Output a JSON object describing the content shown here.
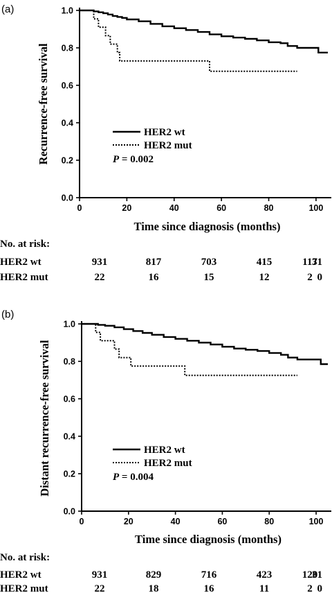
{
  "chart_data": [
    {
      "type": "line",
      "panel_label": "(a)",
      "ylabel": "Recurrence-free survival",
      "xlabel": "Time since diagnosis (months)",
      "xlim": [
        0,
        105
      ],
      "ylim": [
        0.0,
        1.0
      ],
      "x_ticks": [
        "0",
        "20",
        "40",
        "60",
        "80",
        "100"
      ],
      "y_ticks": [
        "0.0",
        "0.2",
        "0.4",
        "0.6",
        "0.8",
        "1.0"
      ],
      "legend": {
        "placement": "center-left",
        "p_label": "P",
        "p_value": "= 0.002"
      },
      "series": [
        {
          "name": "HER2 wt",
          "style": "solid",
          "points": [
            [
              0,
              1.0
            ],
            [
              4,
              1.0
            ],
            [
              6,
              0.995
            ],
            [
              8,
              0.99
            ],
            [
              10,
              0.985
            ],
            [
              12,
              0.978
            ],
            [
              14,
              0.97
            ],
            [
              16,
              0.965
            ],
            [
              18,
              0.96
            ],
            [
              20,
              0.952
            ],
            [
              25,
              0.942
            ],
            [
              30,
              0.928
            ],
            [
              35,
              0.915
            ],
            [
              40,
              0.905
            ],
            [
              45,
              0.895
            ],
            [
              50,
              0.885
            ],
            [
              55,
              0.872
            ],
            [
              60,
              0.862
            ],
            [
              65,
              0.855
            ],
            [
              70,
              0.848
            ],
            [
              75,
              0.84
            ],
            [
              80,
              0.83
            ],
            [
              85,
              0.825
            ],
            [
              88,
              0.81
            ],
            [
              92,
              0.8
            ],
            [
              96,
              0.8
            ],
            [
              100,
              0.8
            ],
            [
              101,
              0.775
            ],
            [
              105,
              0.775
            ]
          ]
        },
        {
          "name": "HER2 mut",
          "style": "dotted",
          "points": [
            [
              5,
              1.0
            ],
            [
              6,
              0.955
            ],
            [
              8,
              0.91
            ],
            [
              11,
              0.865
            ],
            [
              13,
              0.82
            ],
            [
              16,
              0.775
            ],
            [
              17,
              0.73
            ],
            [
              54,
              0.73
            ],
            [
              55,
              0.675
            ],
            [
              92,
              0.675
            ]
          ]
        }
      ],
      "risk_table": {
        "title": "No. at risk:",
        "rows": [
          {
            "label": "HER2 wt",
            "values": [
              "931",
              "817",
              "703",
              "415",
              "117",
              "31"
            ]
          },
          {
            "label": "HER2 mut",
            "values": [
              "22",
              "16",
              "15",
              "12",
              "2",
              "0"
            ]
          }
        ]
      }
    },
    {
      "type": "line",
      "panel_label": "(b)",
      "ylabel": "Distant recurrence-free survival",
      "xlabel": "Time since diagnosis (months)",
      "xlim": [
        0,
        105
      ],
      "ylim": [
        0.0,
        1.0
      ],
      "x_ticks": [
        "0",
        "20",
        "40",
        "60",
        "80",
        "100"
      ],
      "y_ticks": [
        "0.0",
        "0.2",
        "0.4",
        "0.6",
        "0.8",
        "1.0"
      ],
      "legend": {
        "placement": "center-left",
        "p_label": "P",
        "p_value": "= 0.004"
      },
      "series": [
        {
          "name": "HER2 wt",
          "style": "solid",
          "points": [
            [
              0,
              1.0
            ],
            [
              5,
              1.0
            ],
            [
              7,
              0.995
            ],
            [
              10,
              0.99
            ],
            [
              14,
              0.982
            ],
            [
              18,
              0.972
            ],
            [
              22,
              0.962
            ],
            [
              26,
              0.952
            ],
            [
              30,
              0.942
            ],
            [
              35,
              0.93
            ],
            [
              40,
              0.92
            ],
            [
              45,
              0.91
            ],
            [
              50,
              0.9
            ],
            [
              55,
              0.89
            ],
            [
              60,
              0.878
            ],
            [
              65,
              0.868
            ],
            [
              70,
              0.862
            ],
            [
              75,
              0.855
            ],
            [
              80,
              0.845
            ],
            [
              85,
              0.835
            ],
            [
              88,
              0.82
            ],
            [
              92,
              0.81
            ],
            [
              96,
              0.81
            ],
            [
              100,
              0.81
            ],
            [
              102,
              0.785
            ],
            [
              105,
              0.785
            ]
          ]
        },
        {
          "name": "HER2 mut",
          "style": "dotted",
          "points": [
            [
              5,
              1.0
            ],
            [
              6,
              0.955
            ],
            [
              8,
              0.91
            ],
            [
              14,
              0.865
            ],
            [
              16,
              0.82
            ],
            [
              21,
              0.775
            ],
            [
              22,
              0.775
            ],
            [
              43,
              0.775
            ],
            [
              44,
              0.725
            ],
            [
              92,
              0.725
            ]
          ]
        }
      ],
      "risk_table": {
        "title": "No. at risk:",
        "rows": [
          {
            "label": "HER2 wt",
            "values": [
              "931",
              "829",
              "716",
              "423",
              "120",
              "31"
            ]
          },
          {
            "label": "HER2 mut",
            "values": [
              "22",
              "18",
              "16",
              "11",
              "2",
              "0"
            ]
          }
        ]
      }
    }
  ]
}
